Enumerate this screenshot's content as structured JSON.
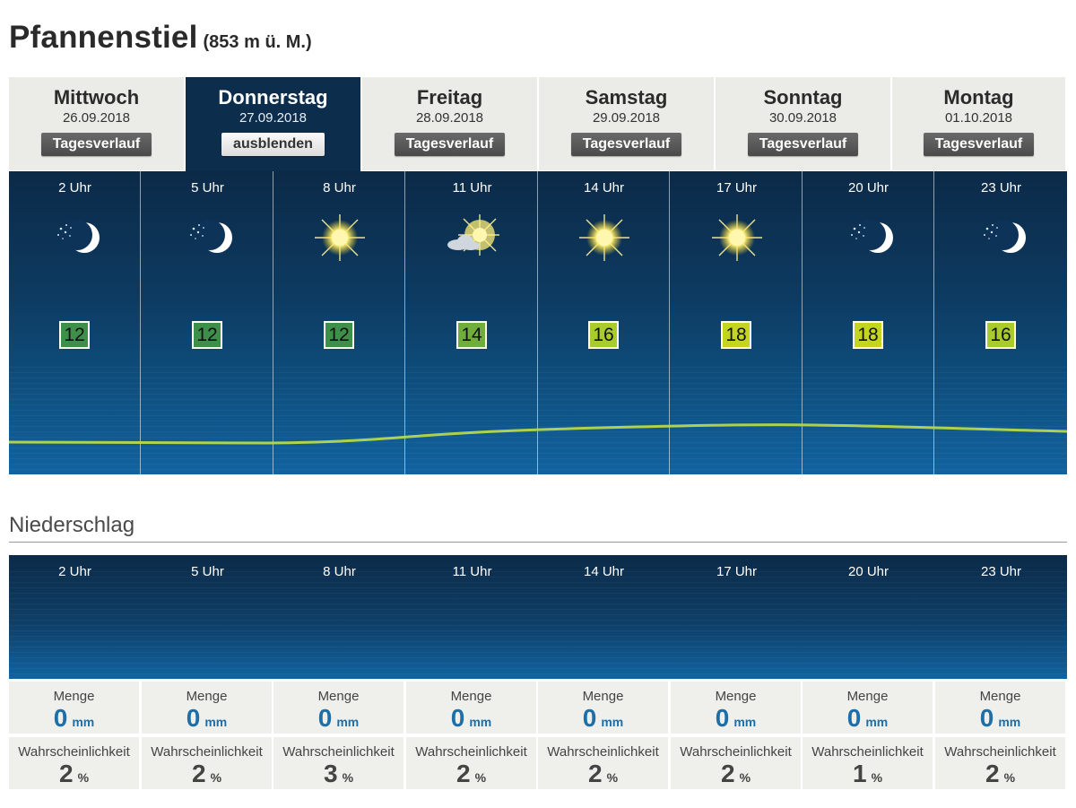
{
  "location": {
    "name": "Pfannenstiel",
    "altitude": "(853 m ü. M.)"
  },
  "days": [
    {
      "day": "Mittwoch",
      "date": "26.09.2018",
      "button": "Tagesverlauf",
      "active": false
    },
    {
      "day": "Donnerstag",
      "date": "27.09.2018",
      "button": "ausblenden",
      "active": true
    },
    {
      "day": "Freitag",
      "date": "28.09.2018",
      "button": "Tagesverlauf",
      "active": false
    },
    {
      "day": "Samstag",
      "date": "29.09.2018",
      "button": "Tagesverlauf",
      "active": false
    },
    {
      "day": "Sonntag",
      "date": "30.09.2018",
      "button": "Tagesverlauf",
      "active": false
    },
    {
      "day": "Montag",
      "date": "01.10.2018",
      "button": "Tagesverlauf",
      "active": false
    }
  ],
  "hours": [
    {
      "time": "2 Uhr",
      "icon": "moon-stars-icon",
      "temp": "12",
      "temp_color": "#3e8f4a"
    },
    {
      "time": "5 Uhr",
      "icon": "moon-stars-icon",
      "temp": "12",
      "temp_color": "#3e8f4a"
    },
    {
      "time": "8 Uhr",
      "icon": "sun-icon",
      "temp": "12",
      "temp_color": "#3e8f4a"
    },
    {
      "time": "11 Uhr",
      "icon": "sun-cloud-icon",
      "temp": "14",
      "temp_color": "#6fae3a"
    },
    {
      "time": "14 Uhr",
      "icon": "sun-icon",
      "temp": "16",
      "temp_color": "#a9cc2c"
    },
    {
      "time": "17 Uhr",
      "icon": "sun-icon",
      "temp": "18",
      "temp_color": "#c3d51f"
    },
    {
      "time": "20 Uhr",
      "icon": "moon-stars-icon",
      "temp": "18",
      "temp_color": "#c3d51f"
    },
    {
      "time": "23 Uhr",
      "icon": "moon-stars-icon",
      "temp": "16",
      "temp_color": "#a9cc2c"
    }
  ],
  "precipitation": {
    "title": "Niederschlag",
    "amount_label": "Menge",
    "amount_unit": "mm",
    "probability_label": "Wahrscheinlichkeit",
    "probability_unit": "%",
    "amounts": [
      "0",
      "0",
      "0",
      "0",
      "0",
      "0",
      "0",
      "0"
    ],
    "probabilities": [
      "2",
      "2",
      "3",
      "2",
      "2",
      "2",
      "1",
      "2"
    ]
  },
  "colors": {
    "panel_dark": "#0c2a48",
    "panel_light": "#1163a0",
    "curve": "#b6d84a",
    "accent_blue": "#1e6fa8"
  }
}
